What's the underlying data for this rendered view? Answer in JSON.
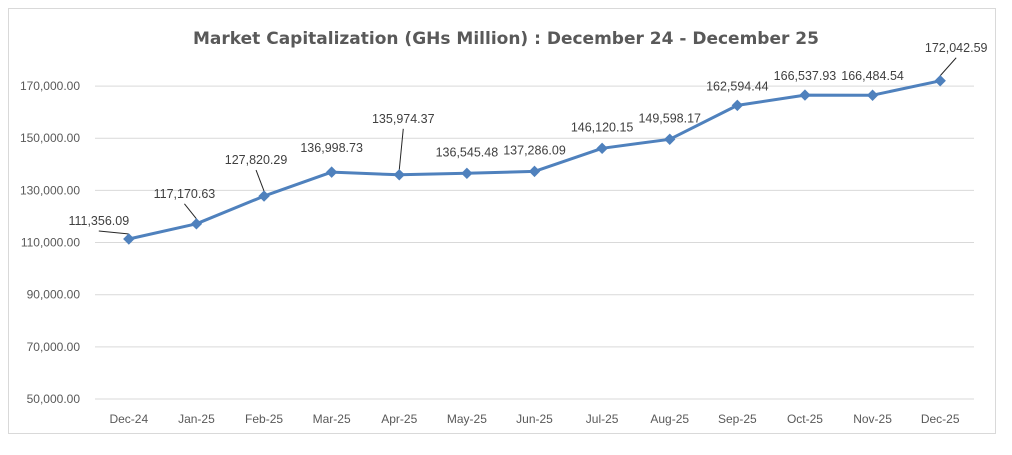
{
  "chart_data": {
    "type": "line",
    "title": "Market Capitalization (GHs Million) : December 24 - December 25",
    "xlabel": "",
    "ylabel": "",
    "categories": [
      "Dec-24",
      "Jan-25",
      "Feb-25",
      "Mar-25",
      "Apr-25",
      "May-25",
      "Jun-25",
      "Jul-25",
      "Aug-25",
      "Sep-25",
      "Oct-25",
      "Nov-25",
      "Dec-25"
    ],
    "series": [
      {
        "name": "Market Capitalization",
        "values": [
          111356.09,
          117170.63,
          127820.29,
          136998.73,
          135974.37,
          136545.48,
          137286.09,
          146120.15,
          149598.17,
          162594.44,
          166537.93,
          166484.54,
          172042.59
        ],
        "color": "#4f81bd"
      }
    ],
    "data_labels": [
      "111,356.09",
      "117,170.63",
      "127,820.29",
      "136,998.73",
      "135,974.37",
      "136,545.48",
      "137,286.09",
      "146,120.15",
      "149,598.17",
      "162,594.44",
      "166,537.93",
      "166,484.54",
      "172,042.59"
    ],
    "y_ticks": [
      50000,
      70000,
      90000,
      110000,
      130000,
      150000,
      170000
    ],
    "y_tick_labels": [
      "50,000.00",
      "70,000.00",
      "90,000.00",
      "110,000.00",
      "130,000.00",
      "150,000.00",
      "170,000.00"
    ],
    "ylim": [
      50000,
      180000
    ],
    "grid": true,
    "legend": "none"
  }
}
